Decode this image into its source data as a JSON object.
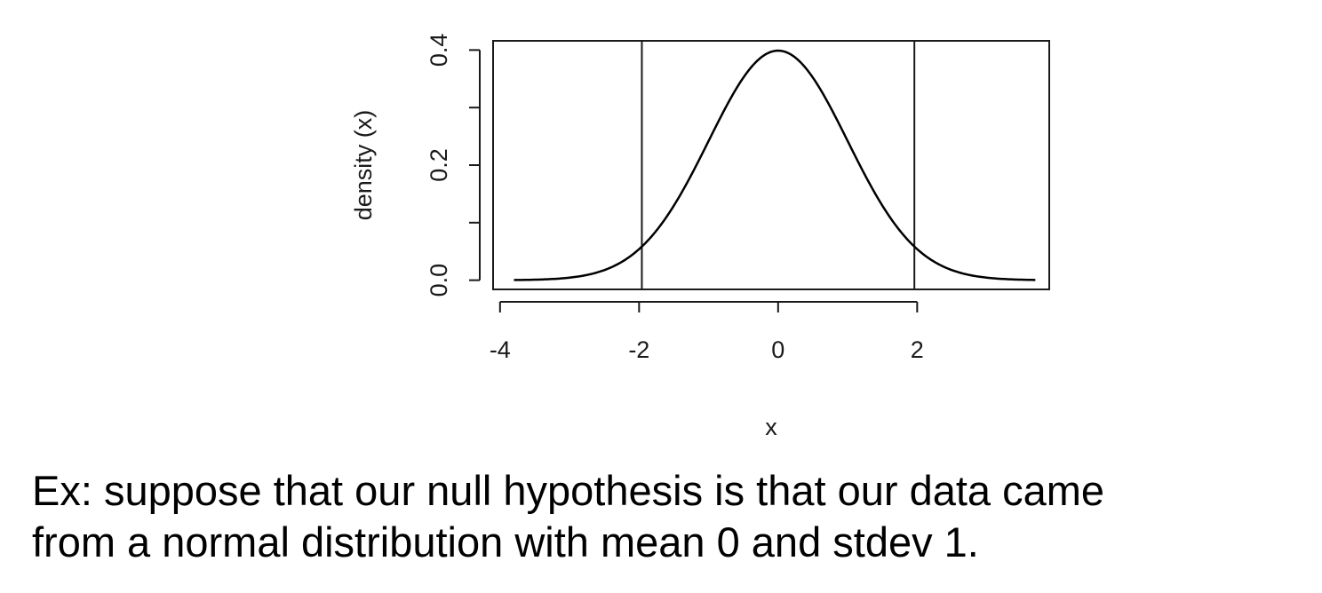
{
  "chart_data": {
    "type": "line",
    "title": "",
    "xlabel": "x",
    "ylabel": "density (x)",
    "xlim": [
      -4.1,
      3.9
    ],
    "ylim": [
      -0.016,
      0.416
    ],
    "x_ticks": [
      "-4",
      "-2",
      "0",
      "2"
    ],
    "y_ticks": [
      "0.0",
      "0.2",
      "0.4"
    ],
    "y_minor_ticks": [
      0.0,
      0.1,
      0.2,
      0.3,
      0.4
    ],
    "curve": {
      "function": "normal pdf",
      "mean": 0,
      "sd": 1,
      "x_range": [
        -3.8,
        3.7
      ]
    },
    "vertical_lines": [
      -1.96,
      1.96
    ],
    "grid": false,
    "colors": {
      "line": "#000000",
      "frame": "#1a1a1a"
    }
  },
  "caption": {
    "line1": "Ex:  suppose that our null hypothesis is that our data came",
    "line2": "from a normal distribution with mean 0 and stdev 1."
  }
}
